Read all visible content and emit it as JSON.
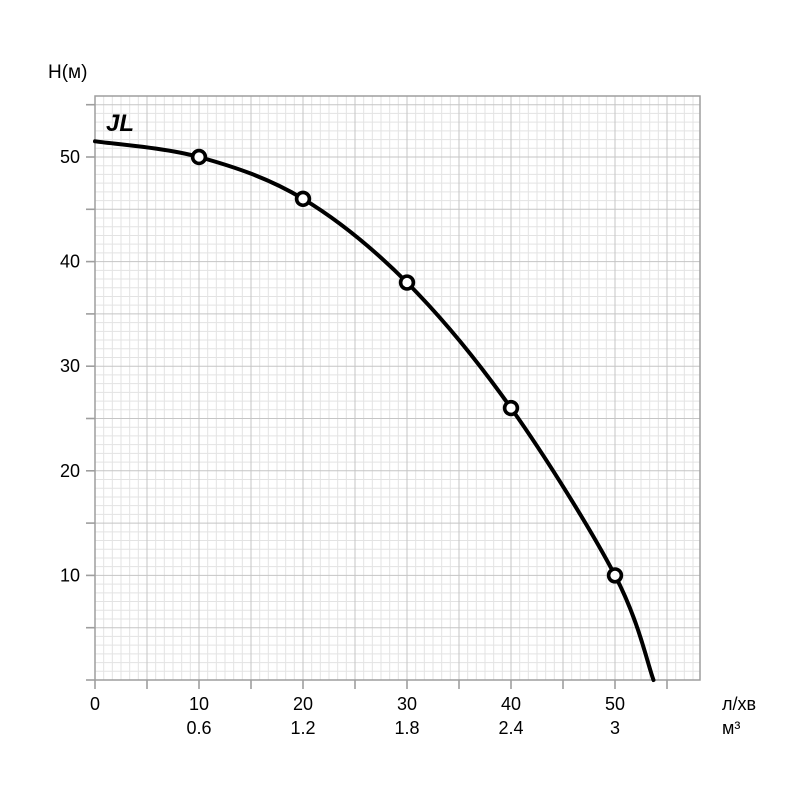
{
  "chart_data": {
    "type": "line",
    "curve_label": "JL",
    "ylabel": "Н(м)",
    "x_unit_row1": "л/хв",
    "x_unit_row2": "м³",
    "x_axis": {
      "min": 0,
      "max": 58,
      "ticks": [
        {
          "l_min": "0",
          "m3": ""
        },
        {
          "l_min": "10",
          "m3": "0.6"
        },
        {
          "l_min": "20",
          "m3": "1.2"
        },
        {
          "l_min": "30",
          "m3": "1.8"
        },
        {
          "l_min": "40",
          "m3": "2.4"
        },
        {
          "l_min": "50",
          "m3": "3"
        }
      ]
    },
    "y_axis": {
      "min": 0,
      "max": 56,
      "ticks": [
        "10",
        "20",
        "30",
        "40",
        "50"
      ]
    },
    "grid": {
      "major_step_units": 5,
      "minors_per_major": 6
    },
    "series": [
      {
        "name": "JL",
        "points_flow_l_min": [
          10,
          20,
          30,
          40,
          50
        ],
        "points_head_m": [
          50,
          46,
          38,
          26,
          10
        ],
        "shutoff_head_m": 51.5,
        "max_flow_l_min": 53.7,
        "curve": [
          [
            0,
            51.5
          ],
          [
            10,
            50
          ],
          [
            20,
            46
          ],
          [
            30,
            38
          ],
          [
            40,
            26
          ],
          [
            50,
            10
          ],
          [
            53.7,
            0
          ]
        ]
      }
    ],
    "colors": {
      "background": "#ffffff",
      "curve": "#000000",
      "marker_fill": "#ffffff",
      "marker_stroke": "#000000",
      "grid_minor": "#e3e3e3",
      "grid_major": "#c5c5c5",
      "axis": "#9e9e9e",
      "text": "#000000"
    }
  }
}
